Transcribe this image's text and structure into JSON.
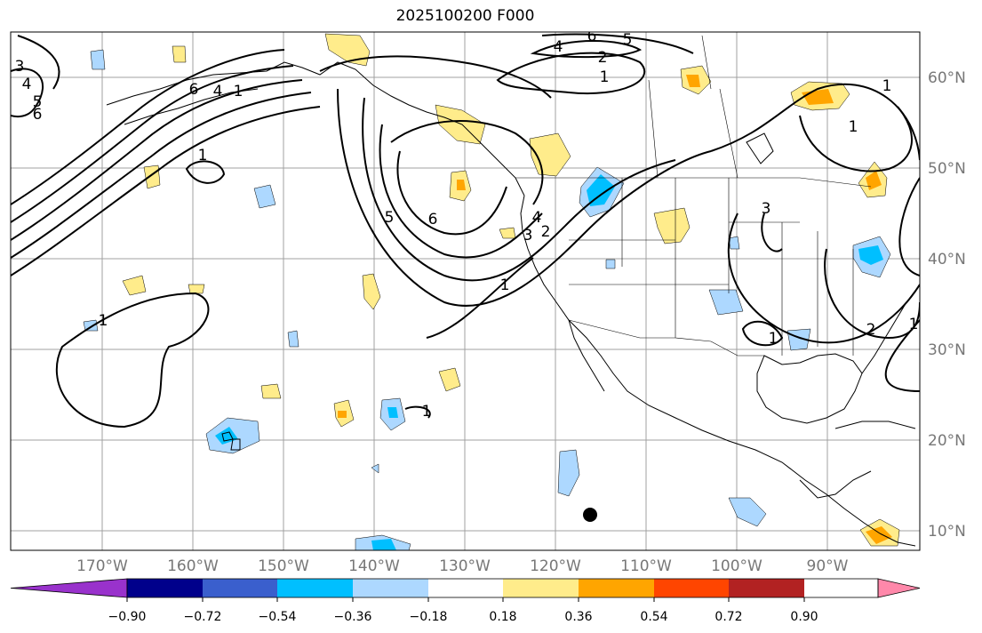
{
  "title": "2025100200 F000",
  "map": {
    "lon_ticks": [
      "170°W",
      "160°W",
      "150°W",
      "140°W",
      "130°W",
      "120°W",
      "110°W",
      "100°W",
      "90°W"
    ],
    "lat_ticks": [
      "60°N",
      "50°N",
      "40°N",
      "30°N",
      "20°N",
      "10°N"
    ],
    "contour_labels": [
      "3",
      "4",
      "5",
      "6",
      "6",
      "4",
      "1",
      "1",
      "6",
      "5",
      "4",
      "2",
      "1",
      "1",
      "5",
      "6",
      "4",
      "3",
      "2",
      "1",
      "1",
      "1",
      "3",
      "1",
      "1",
      "1",
      "2"
    ],
    "marker": "black-dot"
  },
  "colorbar": {
    "ticks": [
      "−0.90",
      "−0.72",
      "−0.54",
      "−0.36",
      "−0.18",
      "0.18",
      "0.36",
      "0.54",
      "0.72",
      "0.90"
    ],
    "colors": [
      "#9932cc",
      "#00008b",
      "#3a5fcd",
      "#00bfff",
      "#add8ff",
      "#ffffff",
      "#ffec8b",
      "#ffa500",
      "#ff4500",
      "#b22222",
      "#ff88aa"
    ],
    "extend": "both"
  },
  "chart_data": {
    "type": "heatmap",
    "title": "2025100200 F000",
    "xlabel": "",
    "ylabel": "",
    "x_range_deg": [
      -180,
      -80
    ],
    "y_range_deg": [
      8,
      65
    ],
    "levels": [
      -0.9,
      -0.72,
      -0.54,
      -0.36,
      -0.18,
      0.18,
      0.36,
      0.54,
      0.72,
      0.9
    ],
    "contour_values": [
      1,
      2,
      3,
      4,
      5,
      6
    ],
    "grid": true
  }
}
